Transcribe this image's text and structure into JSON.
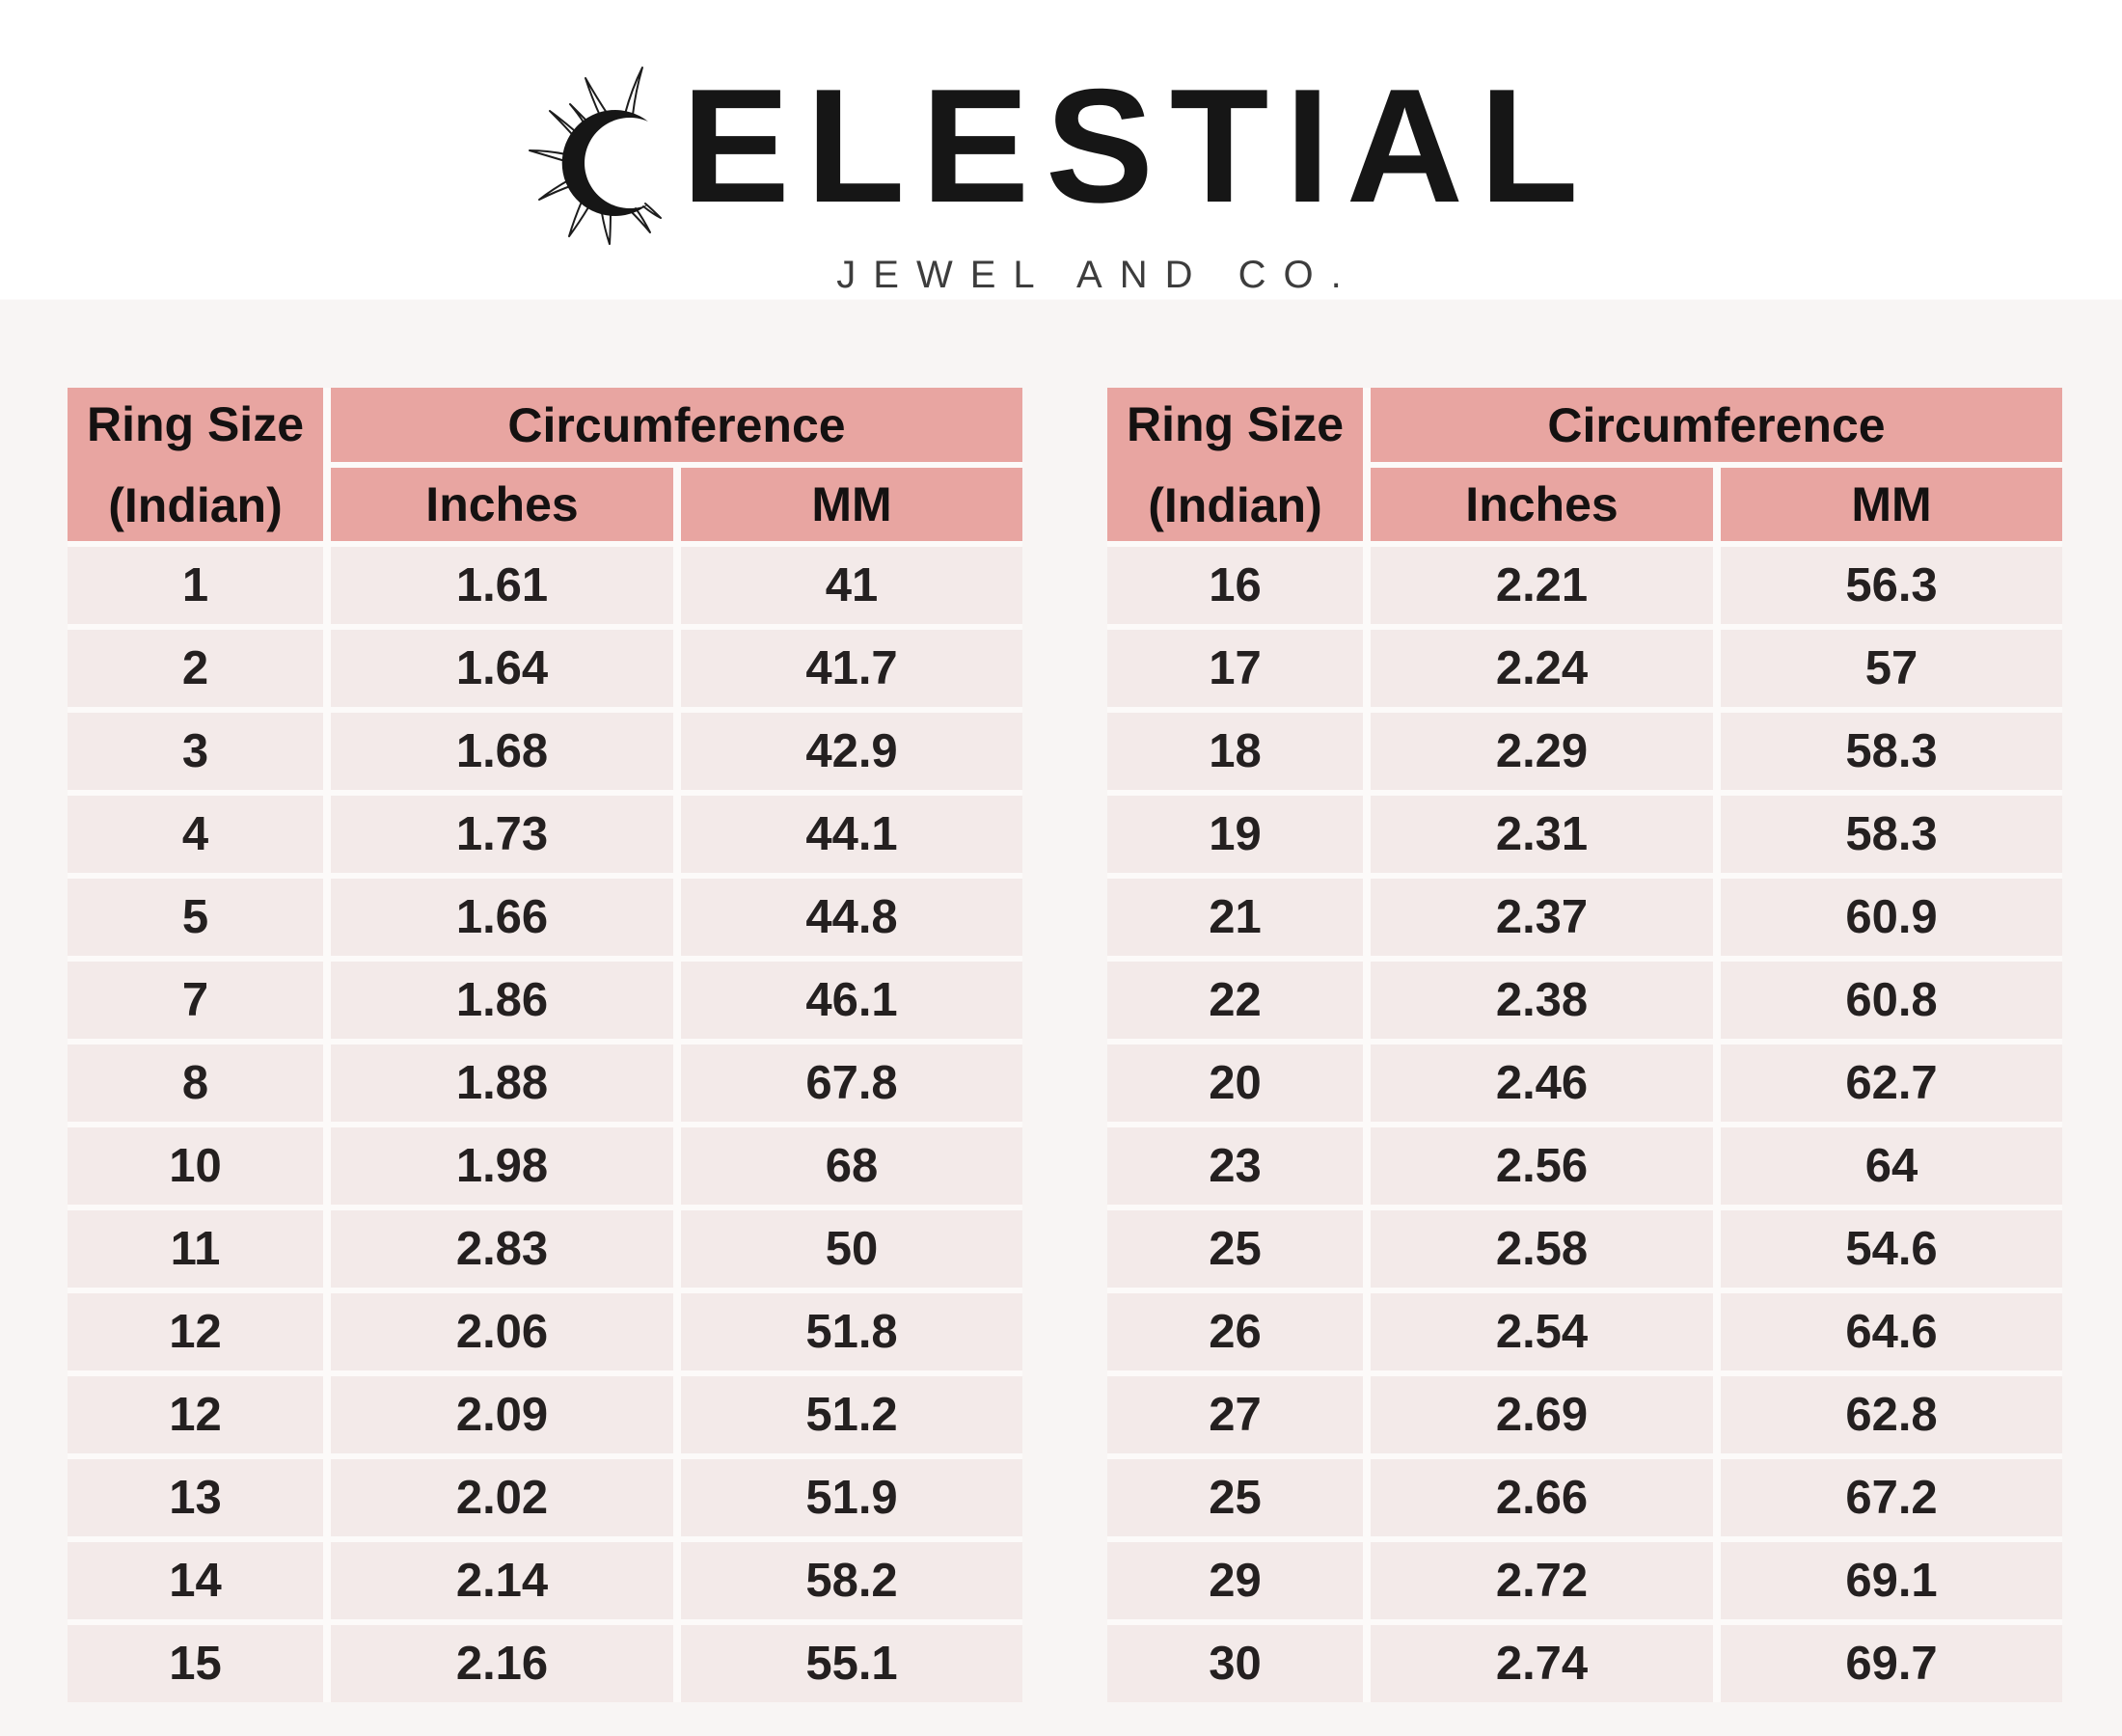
{
  "brand": {
    "full_name": "CELESTIAL",
    "name_initial_replaced_by_icon": "C",
    "name_rest": "ELESTIAL",
    "subtitle": "JEWEL AND CO.",
    "logo_icon": "sun-crescent-icon"
  },
  "table_headers": {
    "ring_size_line1": "Ring Size",
    "ring_size_line2": "(Indian)",
    "circumference": "Circumference",
    "inches": "Inches",
    "mm": "MM"
  },
  "colors": {
    "header_bg": "#e8a5a1",
    "row_bg": "#f3eae9",
    "gap": "#fcfaf9",
    "page_bg_bottom": "#f8f5f4",
    "text": "#242020",
    "logo_text": "#161616",
    "subtitle_text": "#3d3d3d"
  },
  "chart_data": {
    "type": "table",
    "title": "CELESTIAL JEWEL AND CO. ring size chart (Indian sizes)",
    "columns": [
      "Ring Size (Indian)",
      "Circumference Inches",
      "Circumference MM"
    ],
    "tables": [
      {
        "position": "left",
        "rows": [
          [
            "1",
            "1.61",
            "41"
          ],
          [
            "2",
            "1.64",
            "41.7"
          ],
          [
            "3",
            "1.68",
            "42.9"
          ],
          [
            "4",
            "1.73",
            "44.1"
          ],
          [
            "5",
            "1.66",
            "44.8"
          ],
          [
            "7",
            "1.86",
            "46.1"
          ],
          [
            "8",
            "1.88",
            "67.8"
          ],
          [
            "10",
            "1.98",
            "68"
          ],
          [
            "11",
            "2.83",
            "50"
          ],
          [
            "12",
            "2.06",
            "51.8"
          ],
          [
            "12",
            "2.09",
            "51.2"
          ],
          [
            "13",
            "2.02",
            "51.9"
          ],
          [
            "14",
            "2.14",
            "58.2"
          ],
          [
            "15",
            "2.16",
            "55.1"
          ]
        ]
      },
      {
        "position": "right",
        "rows": [
          [
            "16",
            "2.21",
            "56.3"
          ],
          [
            "17",
            "2.24",
            "57"
          ],
          [
            "18",
            "2.29",
            "58.3"
          ],
          [
            "19",
            "2.31",
            "58.3"
          ],
          [
            "21",
            "2.37",
            "60.9"
          ],
          [
            "22",
            "2.38",
            "60.8"
          ],
          [
            "20",
            "2.46",
            "62.7"
          ],
          [
            "23",
            "2.56",
            "64"
          ],
          [
            "25",
            "2.58",
            "54.6"
          ],
          [
            "26",
            "2.54",
            "64.6"
          ],
          [
            "27",
            "2.69",
            "62.8"
          ],
          [
            "25",
            "2.66",
            "67.2"
          ],
          [
            "29",
            "2.72",
            "69.1"
          ],
          [
            "30",
            "2.74",
            "69.7"
          ]
        ]
      }
    ]
  }
}
